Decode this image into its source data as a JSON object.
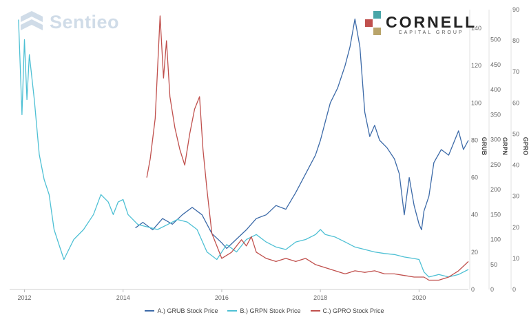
{
  "logos": {
    "sentieo": "Sentieo",
    "cornell_name": "CORNELL",
    "cornell_sub": "CAPITAL GROUP",
    "cornell_colors": [
      "#4aa6a8",
      "#c0504d",
      "#b9a46a"
    ]
  },
  "chart_data": {
    "type": "line",
    "title": "",
    "x_axis": {
      "ticks": [
        "2012",
        "2014",
        "2016",
        "2018",
        "2020"
      ],
      "range": [
        2011.7,
        2021.0
      ]
    },
    "y_axes": [
      {
        "label": "GRUB",
        "range": [
          0,
          150
        ],
        "ticks": [
          "0",
          "20",
          "40",
          "60",
          "80",
          "100",
          "120",
          "140"
        ]
      },
      {
        "label": "GRPN",
        "range": [
          0,
          560
        ],
        "ticks": [
          "0",
          "50",
          "100",
          "150",
          "200",
          "250",
          "300",
          "350",
          "400",
          "450",
          "500"
        ]
      },
      {
        "label": "GPRO",
        "range": [
          0,
          90
        ],
        "ticks": [
          "0",
          "10",
          "20",
          "30",
          "40",
          "50",
          "60",
          "70",
          "80",
          "90"
        ]
      }
    ],
    "series": [
      {
        "name": "A.) GRUB Stock Price",
        "color": "#3c6aa8",
        "axis": 0,
        "points": [
          [
            2014.25,
            33
          ],
          [
            2014.4,
            36
          ],
          [
            2014.6,
            32
          ],
          [
            2014.8,
            38
          ],
          [
            2015.0,
            35
          ],
          [
            2015.2,
            40
          ],
          [
            2015.4,
            44
          ],
          [
            2015.6,
            40
          ],
          [
            2015.8,
            30
          ],
          [
            2016.0,
            25
          ],
          [
            2016.1,
            22
          ],
          [
            2016.3,
            27
          ],
          [
            2016.5,
            32
          ],
          [
            2016.7,
            38
          ],
          [
            2016.9,
            40
          ],
          [
            2017.1,
            45
          ],
          [
            2017.3,
            43
          ],
          [
            2017.5,
            52
          ],
          [
            2017.7,
            62
          ],
          [
            2017.9,
            72
          ],
          [
            2018.0,
            80
          ],
          [
            2018.1,
            90
          ],
          [
            2018.2,
            100
          ],
          [
            2018.35,
            108
          ],
          [
            2018.5,
            120
          ],
          [
            2018.6,
            130
          ],
          [
            2018.7,
            145
          ],
          [
            2018.8,
            130
          ],
          [
            2018.9,
            95
          ],
          [
            2019.0,
            82
          ],
          [
            2019.1,
            88
          ],
          [
            2019.2,
            80
          ],
          [
            2019.35,
            76
          ],
          [
            2019.5,
            70
          ],
          [
            2019.6,
            62
          ],
          [
            2019.7,
            40
          ],
          [
            2019.8,
            60
          ],
          [
            2019.9,
            45
          ],
          [
            2020.0,
            35
          ],
          [
            2020.05,
            32
          ],
          [
            2020.1,
            42
          ],
          [
            2020.2,
            50
          ],
          [
            2020.3,
            68
          ],
          [
            2020.45,
            75
          ],
          [
            2020.6,
            72
          ],
          [
            2020.8,
            85
          ],
          [
            2020.9,
            75
          ],
          [
            2021.0,
            80
          ]
        ]
      },
      {
        "name": "B.) GRPN Stock Price",
        "color": "#4ec0d4",
        "axis": 1,
        "points": [
          [
            2011.88,
            540
          ],
          [
            2011.95,
            350
          ],
          [
            2012.0,
            500
          ],
          [
            2012.05,
            380
          ],
          [
            2012.1,
            470
          ],
          [
            2012.2,
            380
          ],
          [
            2012.3,
            270
          ],
          [
            2012.4,
            220
          ],
          [
            2012.5,
            190
          ],
          [
            2012.6,
            120
          ],
          [
            2012.7,
            90
          ],
          [
            2012.8,
            60
          ],
          [
            2012.9,
            80
          ],
          [
            2013.0,
            100
          ],
          [
            2013.2,
            120
          ],
          [
            2013.4,
            150
          ],
          [
            2013.55,
            190
          ],
          [
            2013.7,
            175
          ],
          [
            2013.8,
            150
          ],
          [
            2013.9,
            175
          ],
          [
            2014.0,
            180
          ],
          [
            2014.1,
            150
          ],
          [
            2014.3,
            130
          ],
          [
            2014.5,
            125
          ],
          [
            2014.7,
            120
          ],
          [
            2014.9,
            130
          ],
          [
            2015.1,
            140
          ],
          [
            2015.3,
            135
          ],
          [
            2015.5,
            120
          ],
          [
            2015.7,
            75
          ],
          [
            2015.9,
            60
          ],
          [
            2016.1,
            90
          ],
          [
            2016.3,
            75
          ],
          [
            2016.5,
            100
          ],
          [
            2016.7,
            110
          ],
          [
            2016.9,
            95
          ],
          [
            2017.1,
            85
          ],
          [
            2017.3,
            80
          ],
          [
            2017.5,
            95
          ],
          [
            2017.7,
            100
          ],
          [
            2017.9,
            110
          ],
          [
            2018.0,
            120
          ],
          [
            2018.1,
            110
          ],
          [
            2018.3,
            105
          ],
          [
            2018.5,
            95
          ],
          [
            2018.7,
            85
          ],
          [
            2018.9,
            80
          ],
          [
            2019.1,
            75
          ],
          [
            2019.3,
            72
          ],
          [
            2019.5,
            70
          ],
          [
            2019.7,
            65
          ],
          [
            2019.9,
            62
          ],
          [
            2020.0,
            60
          ],
          [
            2020.1,
            35
          ],
          [
            2020.2,
            25
          ],
          [
            2020.4,
            30
          ],
          [
            2020.6,
            25
          ],
          [
            2020.8,
            30
          ],
          [
            2021.0,
            40
          ]
        ]
      },
      {
        "name": "C.) GPRO Stock Price",
        "color": "#c0504d",
        "axis": 2,
        "points": [
          [
            2014.48,
            36
          ],
          [
            2014.55,
            42
          ],
          [
            2014.65,
            55
          ],
          [
            2014.75,
            88
          ],
          [
            2014.82,
            68
          ],
          [
            2014.88,
            80
          ],
          [
            2014.95,
            62
          ],
          [
            2015.05,
            52
          ],
          [
            2015.15,
            45
          ],
          [
            2015.25,
            40
          ],
          [
            2015.35,
            50
          ],
          [
            2015.45,
            58
          ],
          [
            2015.55,
            62
          ],
          [
            2015.62,
            45
          ],
          [
            2015.7,
            32
          ],
          [
            2015.8,
            18
          ],
          [
            2015.9,
            14
          ],
          [
            2016.0,
            10
          ],
          [
            2016.2,
            12
          ],
          [
            2016.4,
            16
          ],
          [
            2016.5,
            14
          ],
          [
            2016.6,
            17
          ],
          [
            2016.7,
            12
          ],
          [
            2016.9,
            10
          ],
          [
            2017.1,
            9
          ],
          [
            2017.3,
            10
          ],
          [
            2017.5,
            9
          ],
          [
            2017.7,
            10
          ],
          [
            2017.9,
            8
          ],
          [
            2018.1,
            7
          ],
          [
            2018.3,
            6
          ],
          [
            2018.5,
            5
          ],
          [
            2018.7,
            6
          ],
          [
            2018.9,
            5.5
          ],
          [
            2019.1,
            6
          ],
          [
            2019.3,
            5
          ],
          [
            2019.5,
            5
          ],
          [
            2019.7,
            4.5
          ],
          [
            2019.9,
            4
          ],
          [
            2020.1,
            4
          ],
          [
            2020.2,
            3
          ],
          [
            2020.4,
            3
          ],
          [
            2020.6,
            4
          ],
          [
            2020.8,
            6
          ],
          [
            2021.0,
            9
          ]
        ]
      }
    ],
    "legend": {
      "position": "bottom-center"
    }
  }
}
